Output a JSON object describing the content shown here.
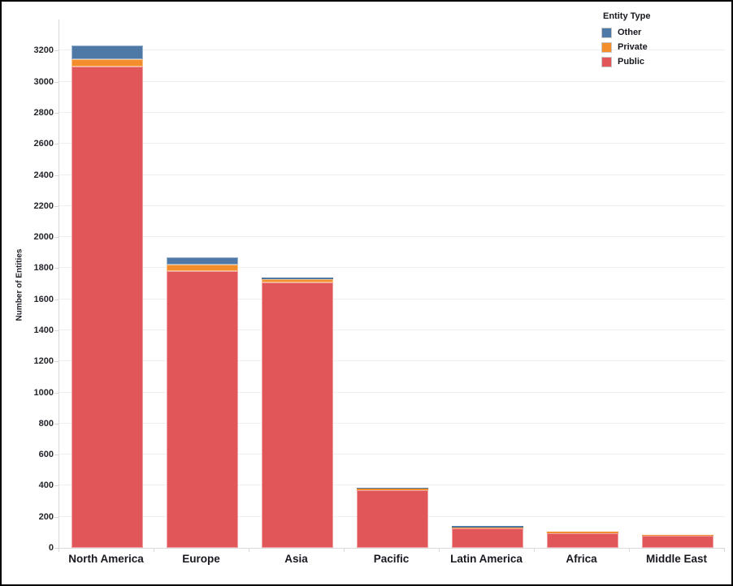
{
  "figure": {
    "ylabel": "Number of Entities",
    "legend_title": "Entity Type"
  },
  "chart_data": {
    "type": "bar",
    "stacked": true,
    "title": "",
    "xlabel": "",
    "ylabel": "Number of Entities",
    "categories": [
      "North America",
      "Europe",
      "Asia",
      "Pacific",
      "Latin America",
      "Africa",
      "Middle East"
    ],
    "series": [
      {
        "name": "Other",
        "color": "#4e79a7",
        "values": [
          90,
          45,
          10,
          5,
          10,
          2,
          2
        ]
      },
      {
        "name": "Private",
        "color": "#f28e2b",
        "values": [
          50,
          45,
          20,
          10,
          3,
          8,
          2
        ]
      },
      {
        "name": "Public",
        "color": "#e15759",
        "values": [
          3095,
          1780,
          1710,
          370,
          127,
          95,
          80
        ]
      }
    ],
    "totals": [
      3235,
      1870,
      1740,
      385,
      140,
      105,
      84
    ],
    "ylim": [
      0,
      3400
    ],
    "yticks": [
      0,
      200,
      400,
      600,
      800,
      1000,
      1200,
      1400,
      1600,
      1800,
      2000,
      2200,
      2400,
      2600,
      2800,
      3000,
      3200
    ],
    "grid": true,
    "legend": {
      "title": "Entity Type",
      "position": "top-right",
      "entries": [
        "Other",
        "Private",
        "Public"
      ]
    }
  }
}
